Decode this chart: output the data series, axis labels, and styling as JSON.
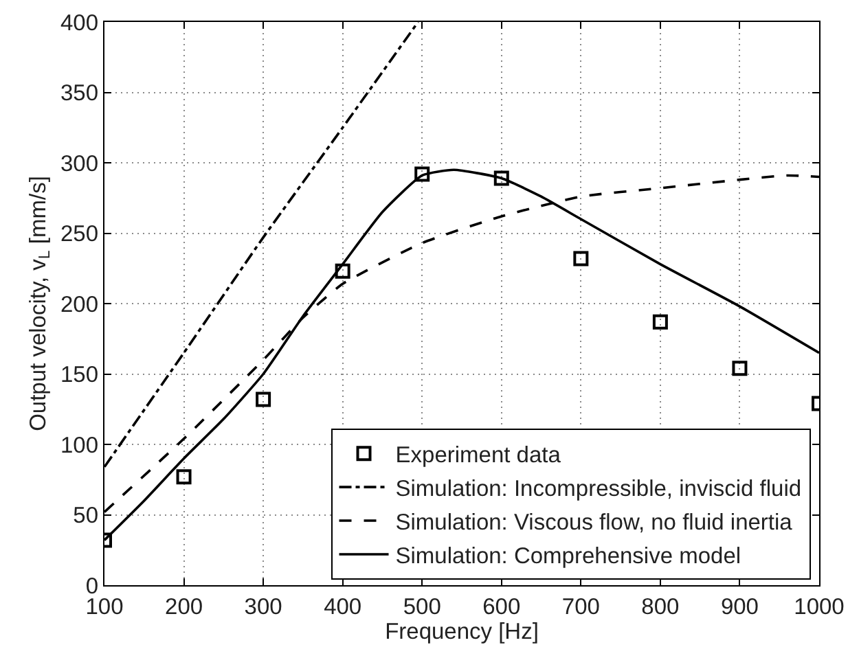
{
  "chart_data": {
    "type": "line",
    "xlabel": "Frequency [Hz]",
    "ylabel": "Output velocity, v$_{L}$ [mm/s]",
    "xlim": [
      100,
      1000
    ],
    "xticks": [
      100,
      200,
      300,
      400,
      500,
      600,
      700,
      800,
      900,
      1000
    ],
    "ylim": [
      0,
      400
    ],
    "yticks": [
      0,
      50,
      100,
      150,
      200,
      250,
      300,
      350,
      400
    ],
    "grid": true,
    "legend": "bottom right",
    "series": [
      {
        "name": "Experiment data",
        "type": "scatter",
        "marker": "square",
        "color": "#000000",
        "x": [
          100,
          200,
          300,
          400,
          500,
          600,
          700,
          800,
          900,
          1000
        ],
        "values": [
          32,
          77,
          132,
          223,
          292,
          289,
          232,
          187,
          154,
          129
        ]
      },
      {
        "name": "Simulation: Incompressible, inviscid fluid",
        "line_style": "dashdot",
        "color": "#000000",
        "x": [
          100,
          200,
          300,
          400,
          495
        ],
        "values": [
          84,
          165,
          247,
          325,
          400
        ]
      },
      {
        "name": "Simulation: Viscous flow, no fluid inertia",
        "line_style": "dashed",
        "color": "#000000",
        "x": [
          100,
          200,
          300,
          350,
          400,
          500,
          600,
          700,
          800,
          900,
          960,
          1000
        ],
        "values": [
          52,
          104,
          160,
          190,
          214,
          243,
          262,
          276,
          282,
          288,
          291,
          290
        ]
      },
      {
        "name": "Simulation: Comprehensive model",
        "line_style": "solid",
        "color": "#000000",
        "x": [
          100,
          150,
          200,
          250,
          300,
          350,
          400,
          450,
          500,
          540,
          600,
          650,
          700,
          800,
          900,
          1000
        ],
        "values": [
          32,
          60,
          90,
          118,
          150,
          191,
          228,
          265,
          291,
          295,
          289,
          276,
          260,
          228,
          198,
          165
        ]
      }
    ]
  }
}
